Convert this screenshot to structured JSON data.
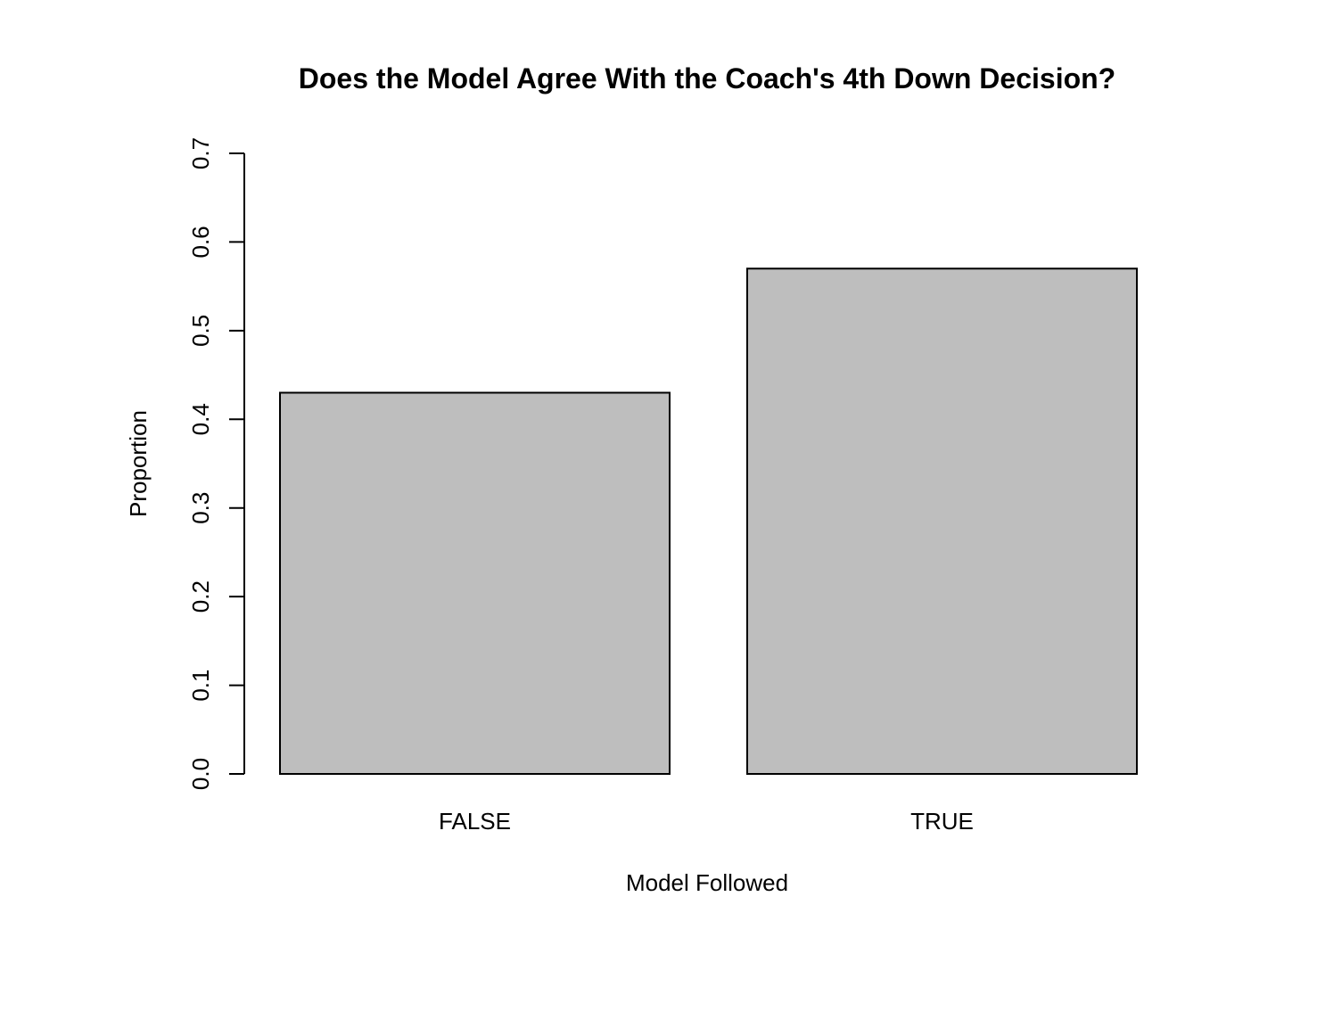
{
  "chart_data": {
    "type": "bar",
    "title": "Does the Model Agree With the Coach's 4th Down Decision?",
    "xlabel": "Model Followed",
    "ylabel": "Proportion",
    "categories": [
      "FALSE",
      "TRUE"
    ],
    "values": [
      0.43,
      0.57
    ],
    "ylim": [
      0,
      0.7
    ],
    "yticks": [
      "0.0",
      "0.1",
      "0.2",
      "0.3",
      "0.4",
      "0.5",
      "0.6",
      "0.7"
    ],
    "grid": false,
    "legend": "none",
    "bar_color": "#bebebe"
  }
}
